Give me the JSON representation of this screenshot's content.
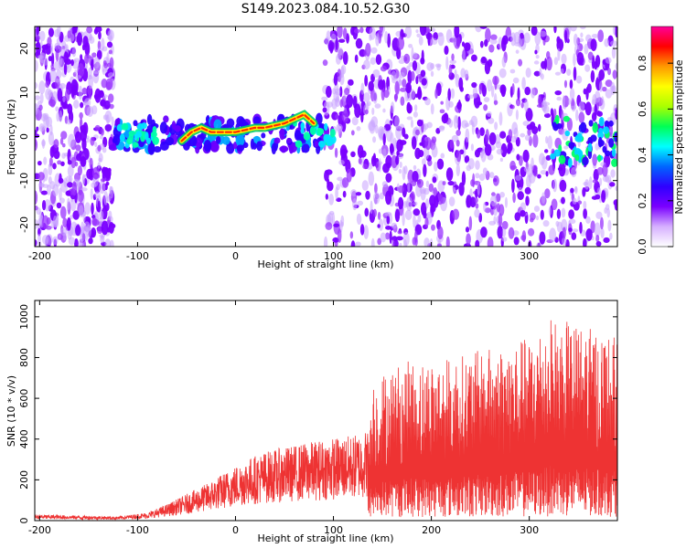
{
  "figure_title": "S149.2023.084.10.52.G30",
  "chart_data": [
    {
      "type": "heatmap",
      "xlabel": "Height of straight line (km)",
      "ylabel": "Frequency (Hz)",
      "xlim": [
        -205,
        390
      ],
      "ylim": [
        -25,
        25
      ],
      "x_ticks": [
        "-200",
        "-100",
        "0",
        "100",
        "200",
        "300"
      ],
      "y_ticks": [
        "-20",
        "-10",
        "0",
        "10",
        "20"
      ],
      "colorbar": {
        "label": "Normalized spectral amplitude",
        "range": [
          0.0,
          0.96
        ],
        "ticks": [
          "0.0",
          "0.2",
          "0.4",
          "0.6",
          "0.8"
        ],
        "colors": [
          "#ffffff",
          "#d6b0ff",
          "#7a00ff",
          "#2f00ff",
          "#0066ff",
          "#00ffff",
          "#00ff55",
          "#aaff00",
          "#ffff00",
          "#ff9900",
          "#ff0000",
          "#ff0099"
        ]
      },
      "ridge": {
        "x": [
          -55,
          -45,
          -35,
          -25,
          -10,
          0,
          10,
          20,
          30,
          40,
          50,
          60,
          70,
          80
        ],
        "y": [
          -1,
          1,
          2,
          1,
          1,
          1,
          1.5,
          2,
          2,
          2.5,
          3,
          4,
          5,
          3
        ]
      },
      "background_blobs": {
        "left_band": [
          -205,
          -125
        ],
        "right_band": [
          90,
          390
        ],
        "right_edge_cluster": [
          320,
          390
        ]
      }
    },
    {
      "type": "line",
      "xlabel": "Height of straight line (km)",
      "ylabel": "SNR (10 * v/v)",
      "xlim": [
        -205,
        390
      ],
      "ylim": [
        0,
        1080
      ],
      "x_ticks": [
        "-200",
        "-100",
        "0",
        "100",
        "200",
        "300"
      ],
      "y_ticks": [
        "0",
        "200",
        "400",
        "600",
        "800",
        "1000"
      ],
      "color": "#ee3333",
      "envelope": [
        {
          "x": -205,
          "y": 30
        },
        {
          "x": -120,
          "y": 20
        },
        {
          "x": -90,
          "y": 40
        },
        {
          "x": -70,
          "y": 80
        },
        {
          "x": -50,
          "y": 130
        },
        {
          "x": -30,
          "y": 180
        },
        {
          "x": -10,
          "y": 240
        },
        {
          "x": 10,
          "y": 300
        },
        {
          "x": 30,
          "y": 340
        },
        {
          "x": 50,
          "y": 360
        },
        {
          "x": 70,
          "y": 380
        },
        {
          "x": 90,
          "y": 400
        },
        {
          "x": 120,
          "y": 420
        },
        {
          "x": 135,
          "y": 450
        },
        {
          "x": 140,
          "y": 700
        },
        {
          "x": 170,
          "y": 780
        },
        {
          "x": 220,
          "y": 800
        },
        {
          "x": 260,
          "y": 850
        },
        {
          "x": 300,
          "y": 900
        },
        {
          "x": 320,
          "y": 1000
        },
        {
          "x": 360,
          "y": 950
        },
        {
          "x": 390,
          "y": 900
        }
      ]
    }
  ]
}
